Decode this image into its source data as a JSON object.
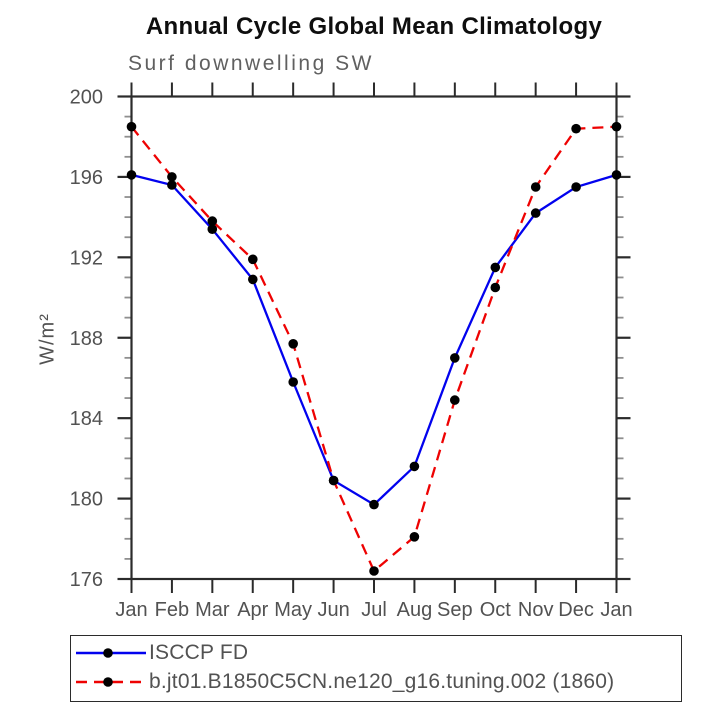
{
  "chart_data": {
    "type": "line",
    "title": "Annual Cycle Global Mean Climatology",
    "subtitle": "Surf downwelling SW",
    "ylabel": "W/m²",
    "xlabel": "",
    "categories": [
      "Jan",
      "Feb",
      "Mar",
      "Apr",
      "May",
      "Jun",
      "Jul",
      "Aug",
      "Sep",
      "Oct",
      "Nov",
      "Dec",
      "Jan"
    ],
    "ylim": [
      176,
      200
    ],
    "yticks_major": [
      200,
      196,
      192,
      188,
      184,
      180,
      176
    ],
    "ytick_minor_step": 1,
    "grid": false,
    "legend_position": "bottom-left-outside-box",
    "axis_color": "#2b2b2b",
    "minor_tick_color": "#8f8f8f",
    "marker": {
      "shape": "circle",
      "color": "#000000",
      "radius": 4.8
    },
    "series": [
      {
        "name": "ISCCP FD",
        "color": "#0202ee",
        "line_style": "solid",
        "dash": "none",
        "values": [
          196.1,
          195.6,
          193.4,
          190.9,
          185.8,
          180.9,
          179.7,
          181.6,
          187.0,
          191.5,
          194.2,
          195.5,
          196.1
        ]
      },
      {
        "name": "b.jt01.B1850C5CN.ne120_g16.tuning.002 (1860)",
        "color": "#ee0202",
        "line_style": "dashed",
        "dash": "11,7",
        "values": [
          198.5,
          196.0,
          193.8,
          191.9,
          187.7,
          180.9,
          176.4,
          178.1,
          184.9,
          190.5,
          195.5,
          198.4,
          198.5
        ]
      }
    ]
  }
}
